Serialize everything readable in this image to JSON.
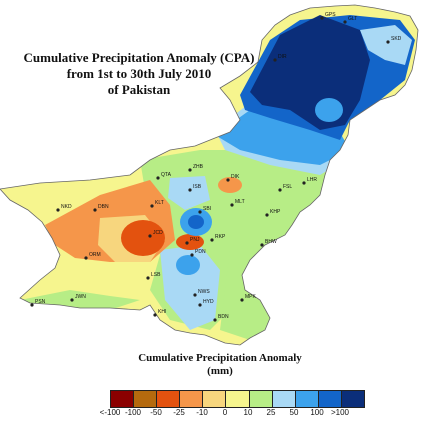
{
  "map": {
    "title_lines": [
      "Cumulative Precipitation Anomaly (CPA)",
      "from 1st to 30th July 2010",
      "of Pakistan"
    ],
    "country": "Pakistan",
    "period": "1st to 30th July 2010"
  },
  "legend": {
    "title_lines": [
      "Cumulative Precipitation Anomaly",
      "(mm)"
    ],
    "classes": [
      {
        "color": "#8b0000"
      },
      {
        "color": "#b56a0e"
      },
      {
        "color": "#e3520f"
      },
      {
        "color": "#f5964a"
      },
      {
        "color": "#f7d67e"
      },
      {
        "color": "#f6f58e"
      },
      {
        "color": "#b7ed86"
      },
      {
        "color": "#a9d9f5"
      },
      {
        "color": "#3ca2ec"
      },
      {
        "color": "#1365c9"
      },
      {
        "color": "#0b2e7a"
      }
    ],
    "labels": [
      "<-100",
      "-100",
      "-50",
      "-25",
      "-10",
      "0",
      "10",
      "25",
      "50",
      "100",
      ">100"
    ]
  },
  "stations": [
    {
      "code": "GPS"
    },
    {
      "code": "GLT"
    },
    {
      "code": "SKD"
    },
    {
      "code": "DIR"
    },
    {
      "code": "QTA"
    },
    {
      "code": "DIK"
    },
    {
      "code": "ZHB"
    },
    {
      "code": "ISB"
    },
    {
      "code": "NKD"
    },
    {
      "code": "DBN"
    },
    {
      "code": "KLT"
    },
    {
      "code": "SBI"
    },
    {
      "code": "JCD"
    },
    {
      "code": "MLT"
    },
    {
      "code": "LHR"
    },
    {
      "code": "BHW"
    },
    {
      "code": "FSL"
    },
    {
      "code": "RKP"
    },
    {
      "code": "PNJ"
    },
    {
      "code": "PDN"
    },
    {
      "code": "KHP"
    },
    {
      "code": "NWS"
    },
    {
      "code": "LSB"
    },
    {
      "code": "ORM"
    },
    {
      "code": "PSN"
    },
    {
      "code": "HYD"
    },
    {
      "code": "BDN"
    },
    {
      "code": "KHI"
    },
    {
      "code": "JWN"
    },
    {
      "code": "MPK"
    }
  ]
}
